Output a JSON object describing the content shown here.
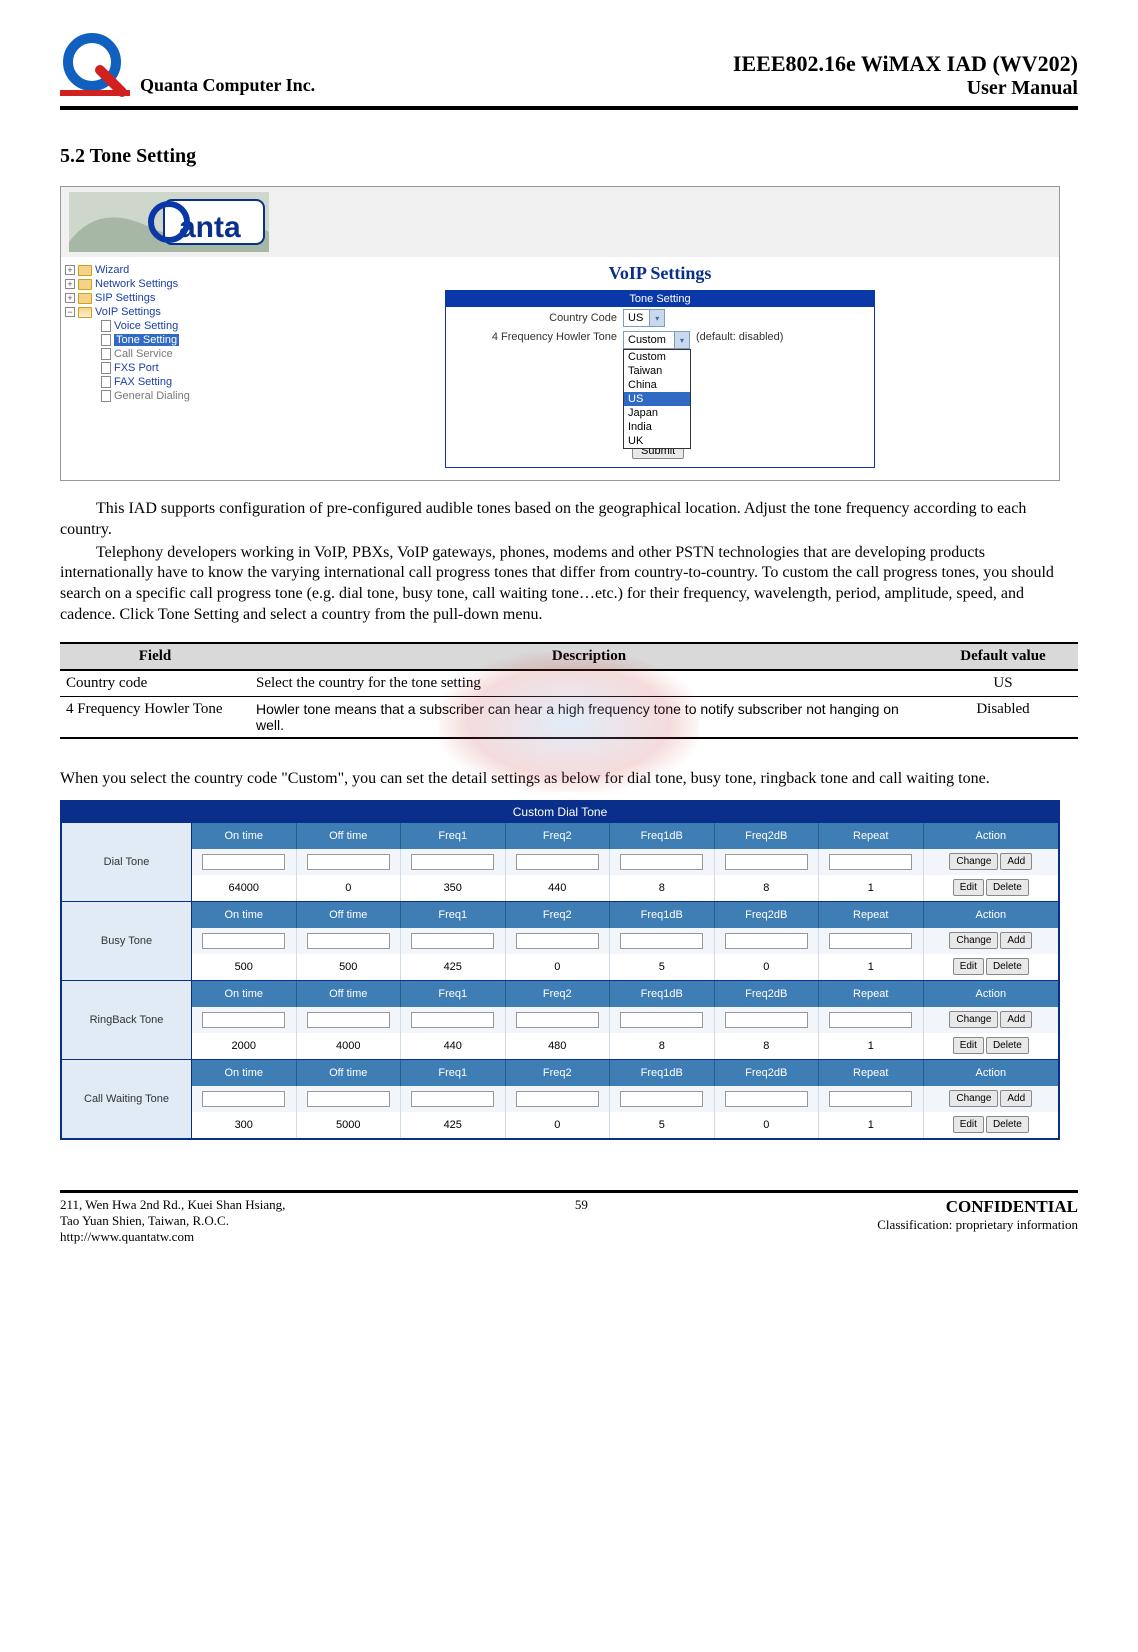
{
  "header": {
    "company": "Quanta  Computer  Inc.",
    "docTitleLine1": "IEEE802.16e  WiMAX  IAD  (WV202)",
    "docTitleLine2": "User  Manual"
  },
  "section": {
    "heading": "5.2  Tone Setting"
  },
  "screenshot1": {
    "nav": {
      "wizard": "Wizard",
      "network": "Network Settings",
      "sip": "SIP Settings",
      "voip": "VoIP Settings",
      "voice": "Voice Setting",
      "tone": "Tone Setting",
      "call": "Call Service",
      "fxs": "FXS Port",
      "fax": "FAX Setting",
      "general": "General Dialing"
    },
    "main": {
      "title": "VoIP Settings",
      "boxTitle": "Tone Setting",
      "countryCodeLabel": "Country Code",
      "countryCodeValue": "US",
      "freqLabel": "4 Frequency Howler Tone",
      "freqValue": "Custom",
      "freqAux": "(default: disabled)",
      "submit": "Submit",
      "dropdown": [
        "Custom",
        "Taiwan",
        "China",
        "US",
        "Japan",
        "India",
        "UK"
      ],
      "dropdownSelected": "US"
    }
  },
  "para1a": "This IAD supports configuration of pre-configured audible tones based on the geographical location. Adjust the tone frequency according to each country.",
  "para1b": "Telephony developers working in VoIP, PBXs, VoIP gateways, phones, modems and other PSTN technologies that are developing products internationally have to know the varying international call progress tones that differ from country-to-country. To custom the call progress tones, you should search on a specific call progress tone (e.g. dial tone, busy tone, call waiting tone…etc.) for their frequency, wavelength, period, amplitude, speed, and cadence. Click Tone Setting and select a country from the pull-down menu.",
  "fieldTable": {
    "headers": {
      "field": "Field",
      "desc": "Description",
      "def": "Default value"
    },
    "rows": [
      {
        "field": "Country code",
        "desc": "Select the country for the tone setting",
        "def": "US"
      },
      {
        "field": "4 Frequency Howler Tone",
        "desc": "Howler tone means that a subscriber can hear a high frequency tone to notify subscriber not hanging on well.",
        "def": "Disabled"
      }
    ]
  },
  "para2": "When you select the country code \"Custom\", you can set the detail settings as below for dial tone, busy tone, ringback tone and call waiting tone.",
  "customTable": {
    "caption": "Custom Dial Tone",
    "columns": [
      "On time",
      "Off time",
      "Freq1",
      "Freq2",
      "Freq1dB",
      "Freq2dB",
      "Repeat",
      "Action"
    ],
    "buttons": {
      "change": "Change",
      "add": "Add",
      "edit": "Edit",
      "delete": "Delete"
    },
    "groups": [
      {
        "label": "Dial Tone",
        "values": [
          "64000",
          "0",
          "350",
          "440",
          "8",
          "8",
          "1"
        ]
      },
      {
        "label": "Busy Tone",
        "values": [
          "500",
          "500",
          "425",
          "0",
          "5",
          "0",
          "1"
        ]
      },
      {
        "label": "RingBack Tone",
        "values": [
          "2000",
          "4000",
          "440",
          "480",
          "8",
          "8",
          "1"
        ]
      },
      {
        "label": "Call Waiting Tone",
        "values": [
          "300",
          "5000",
          "425",
          "0",
          "5",
          "0",
          "1"
        ]
      }
    ]
  },
  "footer": {
    "addr1": "211, Wen Hwa 2nd Rd., Kuei Shan Hsiang,",
    "addr2": "Tao Yuan Shien, Taiwan, R.O.C.",
    "addr3": "http://www.quantatw.com",
    "page": "59",
    "conf": "CONFIDENTIAL",
    "class": "Classification: proprietary information"
  }
}
